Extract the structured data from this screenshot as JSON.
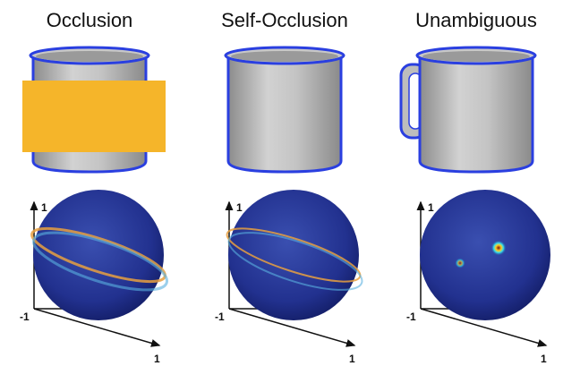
{
  "panels": [
    {
      "title": "Occlusion",
      "axis_labels": {
        "y": "1",
        "origin": "-1",
        "x": "1"
      }
    },
    {
      "title": "Self-Occlusion",
      "axis_labels": {
        "y": "1",
        "origin": "-1",
        "x": "1"
      }
    },
    {
      "title": "Unambiguous",
      "axis_labels": {
        "y": "1",
        "origin": "-1",
        "x": "1"
      }
    }
  ]
}
